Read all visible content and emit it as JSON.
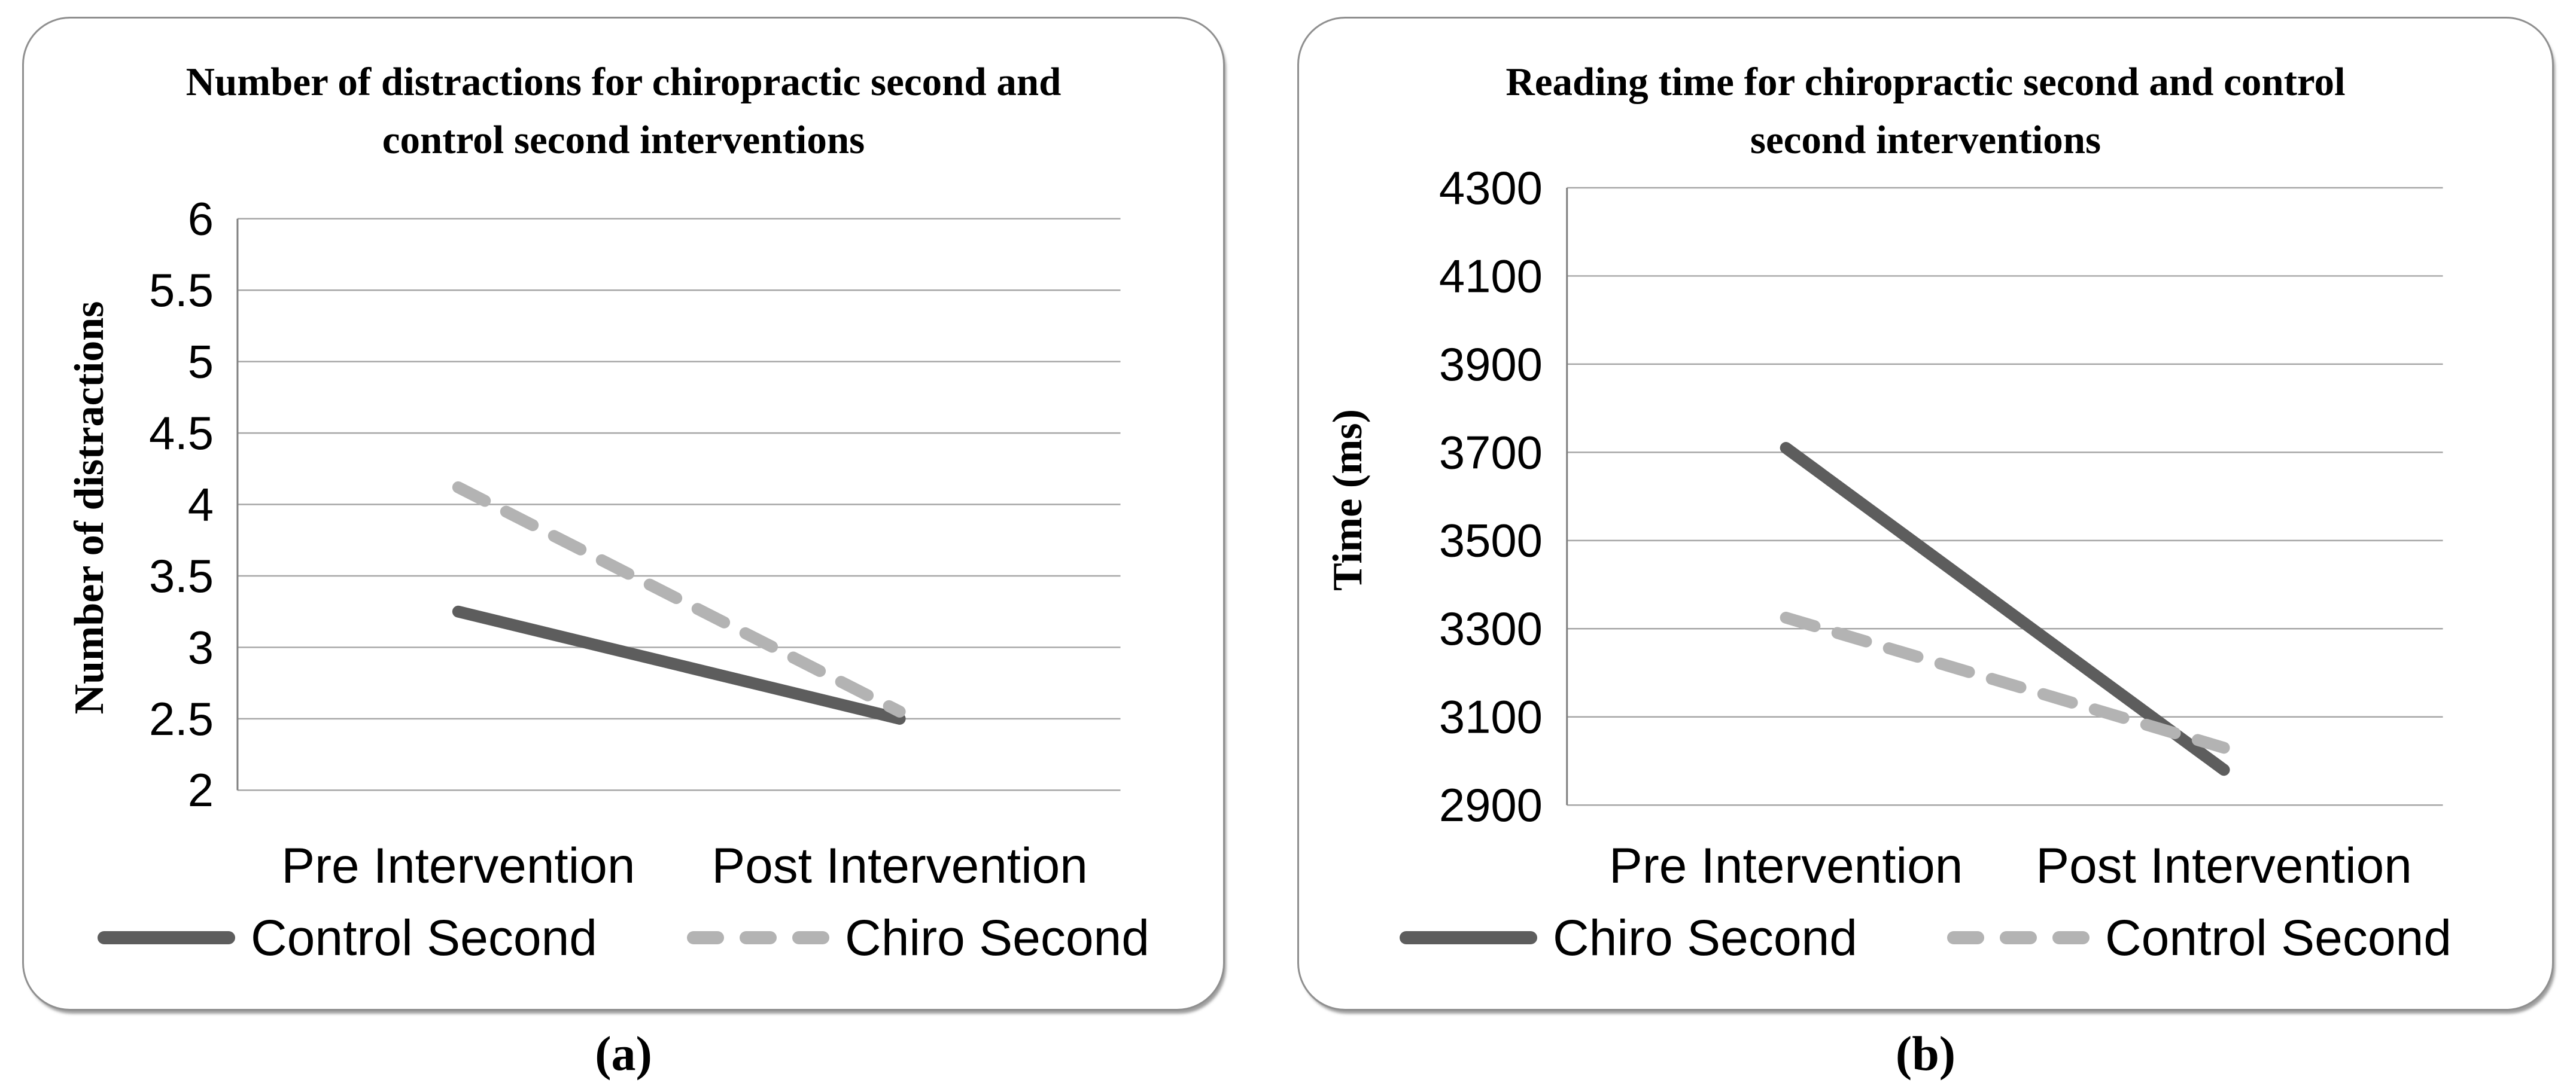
{
  "figure": {
    "background": "#ffffff",
    "panel_count": 2
  },
  "colors": {
    "grid": "#a6a6a6",
    "axis": "#7f7f7f",
    "panel_border": "#8f8f8f",
    "text": "#000000",
    "dark_series": "#5d5d5d",
    "light_series": "#b3b3b3"
  },
  "chart_data": [
    {
      "type": "line",
      "title": "Number of distractions for chiropractic second and control second interventions",
      "title_lines": [
        "Number of distractions for chiropractic second and",
        "control second interventions"
      ],
      "xlabel": "",
      "ylabel": "Number of distractions",
      "categories": [
        "Pre Intervention",
        "Post Intervention"
      ],
      "ylim": [
        2,
        6
      ],
      "ytick_step": 0.5,
      "yticks": [
        "6",
        "5.5",
        "5",
        "4.5",
        "4",
        "3.5",
        "3",
        "2.5",
        "2"
      ],
      "grid": true,
      "legend_position": "bottom",
      "caption": "(a)",
      "series": [
        {
          "name": "Control Second",
          "line_style": "solid",
          "color": "#5d5d5d",
          "values": [
            3.25,
            2.5
          ]
        },
        {
          "name": "Chiro Second",
          "line_style": "dashed",
          "color": "#b3b3b3",
          "values": [
            4.12,
            2.55
          ]
        }
      ]
    },
    {
      "type": "line",
      "title": "Reading time for chiropractic second and control second interventions",
      "title_lines": [
        "Reading time for chiropractic second and control",
        "second interventions"
      ],
      "xlabel": "",
      "ylabel": "Time (ms)",
      "categories": [
        "Pre Intervention",
        "Post Intervention"
      ],
      "ylim": [
        2900,
        4300
      ],
      "ytick_step": 200,
      "yticks": [
        "4300",
        "4100",
        "3900",
        "3700",
        "3500",
        "3300",
        "3100",
        "2900"
      ],
      "grid": true,
      "legend_position": "bottom",
      "caption": "(b)",
      "series": [
        {
          "name": "Chiro Second",
          "line_style": "solid",
          "color": "#5d5d5d",
          "values": [
            3710,
            2980
          ]
        },
        {
          "name": "Control Second",
          "line_style": "dashed",
          "color": "#b3b3b3",
          "values": [
            3325,
            3030
          ]
        }
      ]
    }
  ]
}
